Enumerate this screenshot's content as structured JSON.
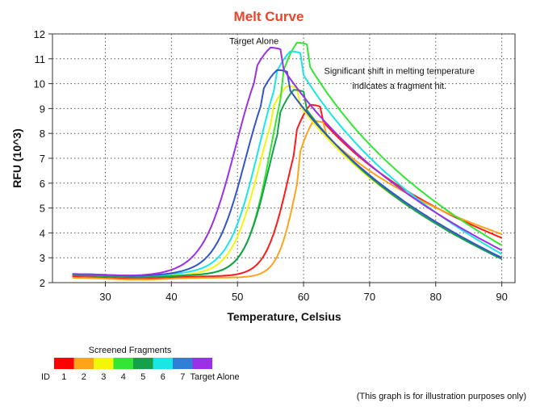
{
  "chart_data": {
    "type": "line",
    "title": "Melt Curve",
    "xlabel": "Temperature, Celsius",
    "ylabel": "RFU (10^3)",
    "xlim": [
      22,
      92
    ],
    "ylim": [
      2,
      12
    ],
    "xticks": [
      30,
      40,
      50,
      60,
      70,
      80,
      90
    ],
    "yticks": [
      2,
      3,
      4,
      5,
      6,
      7,
      8,
      9,
      10,
      11,
      12
    ],
    "grid": true,
    "annotations": [
      {
        "text": "Target Alone",
        "x": 52.5,
        "y": 11.6
      },
      {
        "text": "Significant shift in melting temperature",
        "x": 74.5,
        "y": 10.4
      },
      {
        "text": "indicates a fragment hit.",
        "x": 74.5,
        "y": 9.8
      }
    ],
    "series": [
      {
        "name": "1",
        "color": "#ff1a1a",
        "peak": [
          61.0,
          9.15
        ],
        "end": 3.8,
        "onset": 52.0,
        "base": 2.25
      },
      {
        "name": "2",
        "color": "#ffa31a",
        "peak": [
          61.5,
          8.5
        ],
        "end": 3.95,
        "onset": 54.0,
        "base": 2.2
      },
      {
        "name": "3",
        "color": "#f5f50a",
        "peak": [
          57.5,
          9.9
        ],
        "end": 3.0,
        "onset": 46.5,
        "base": 2.3
      },
      {
        "name": "4",
        "color": "#33e633",
        "peak": [
          59.0,
          11.65
        ],
        "end": 3.5,
        "onset": 49.0,
        "base": 2.3
      },
      {
        "name": "5",
        "color": "#16a049",
        "peak": [
          58.5,
          9.75
        ],
        "end": 2.95,
        "onset": 48.5,
        "base": 2.3
      },
      {
        "name": "6",
        "color": "#1ae6e6",
        "peak": [
          58.0,
          11.3
        ],
        "end": 3.15,
        "onset": 46.0,
        "base": 2.35
      },
      {
        "name": "7",
        "color": "#3355cc",
        "peak": [
          56.0,
          10.55
        ],
        "end": 3.0,
        "onset": 44.0,
        "base": 2.35
      },
      {
        "name": "Target Alone",
        "color": "#9b30e6",
        "peak": [
          55.0,
          11.45
        ],
        "end": 3.3,
        "onset": 42.0,
        "base": 2.35
      }
    ]
  },
  "legend": {
    "title": "Screened Fragments",
    "id_label": "ID",
    "items": [
      {
        "id": "1",
        "color": "#ff0000"
      },
      {
        "id": "2",
        "color": "#ffa31a"
      },
      {
        "id": "3",
        "color": "#f5f50a"
      },
      {
        "id": "4",
        "color": "#33e633"
      },
      {
        "id": "5",
        "color": "#16a049"
      },
      {
        "id": "6",
        "color": "#1ae6e6"
      },
      {
        "id": "7",
        "color": "#2e7fd6"
      },
      {
        "id": "Target Alone",
        "color": "#9b30e6"
      }
    ]
  },
  "footnote": "(This graph is for illustration purposes only)"
}
